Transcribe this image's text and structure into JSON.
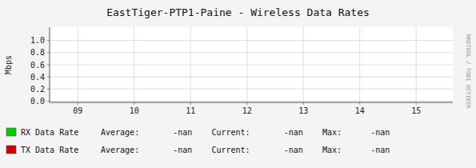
{
  "chart_data": {
    "type": "line",
    "title": "EastTiger-PTP1-Paine - Wireless Data Rates",
    "y_label": "Mbps",
    "x": [],
    "series": [
      {
        "name": "RX Data Rate",
        "color": "#00cc00",
        "values": []
      },
      {
        "name": "TX Data Rate",
        "color": "#cc0000",
        "values": []
      }
    ],
    "annotations": [
      "Average:       -nan    Current:       -nan    Max:      -nan",
      "Average:       -nan    Current:       -nan    Max:      -nan",
      "RRDTOOL / TOBI OETIKER"
    ],
    "xlim": [
      8.5,
      15.65
    ],
    "xticks": [
      {
        "value": 9,
        "label": "09"
      },
      10,
      11,
      12,
      13,
      14,
      15
    ],
    "ylim": [
      -0.02,
      1.22
    ],
    "yticks": [
      {
        "value": 0.0,
        "label": "0.0"
      },
      0.2,
      0.4,
      0.6,
      0.8,
      {
        "value": 1.0,
        "label": "1.0"
      }
    ],
    "grid": true
  }
}
